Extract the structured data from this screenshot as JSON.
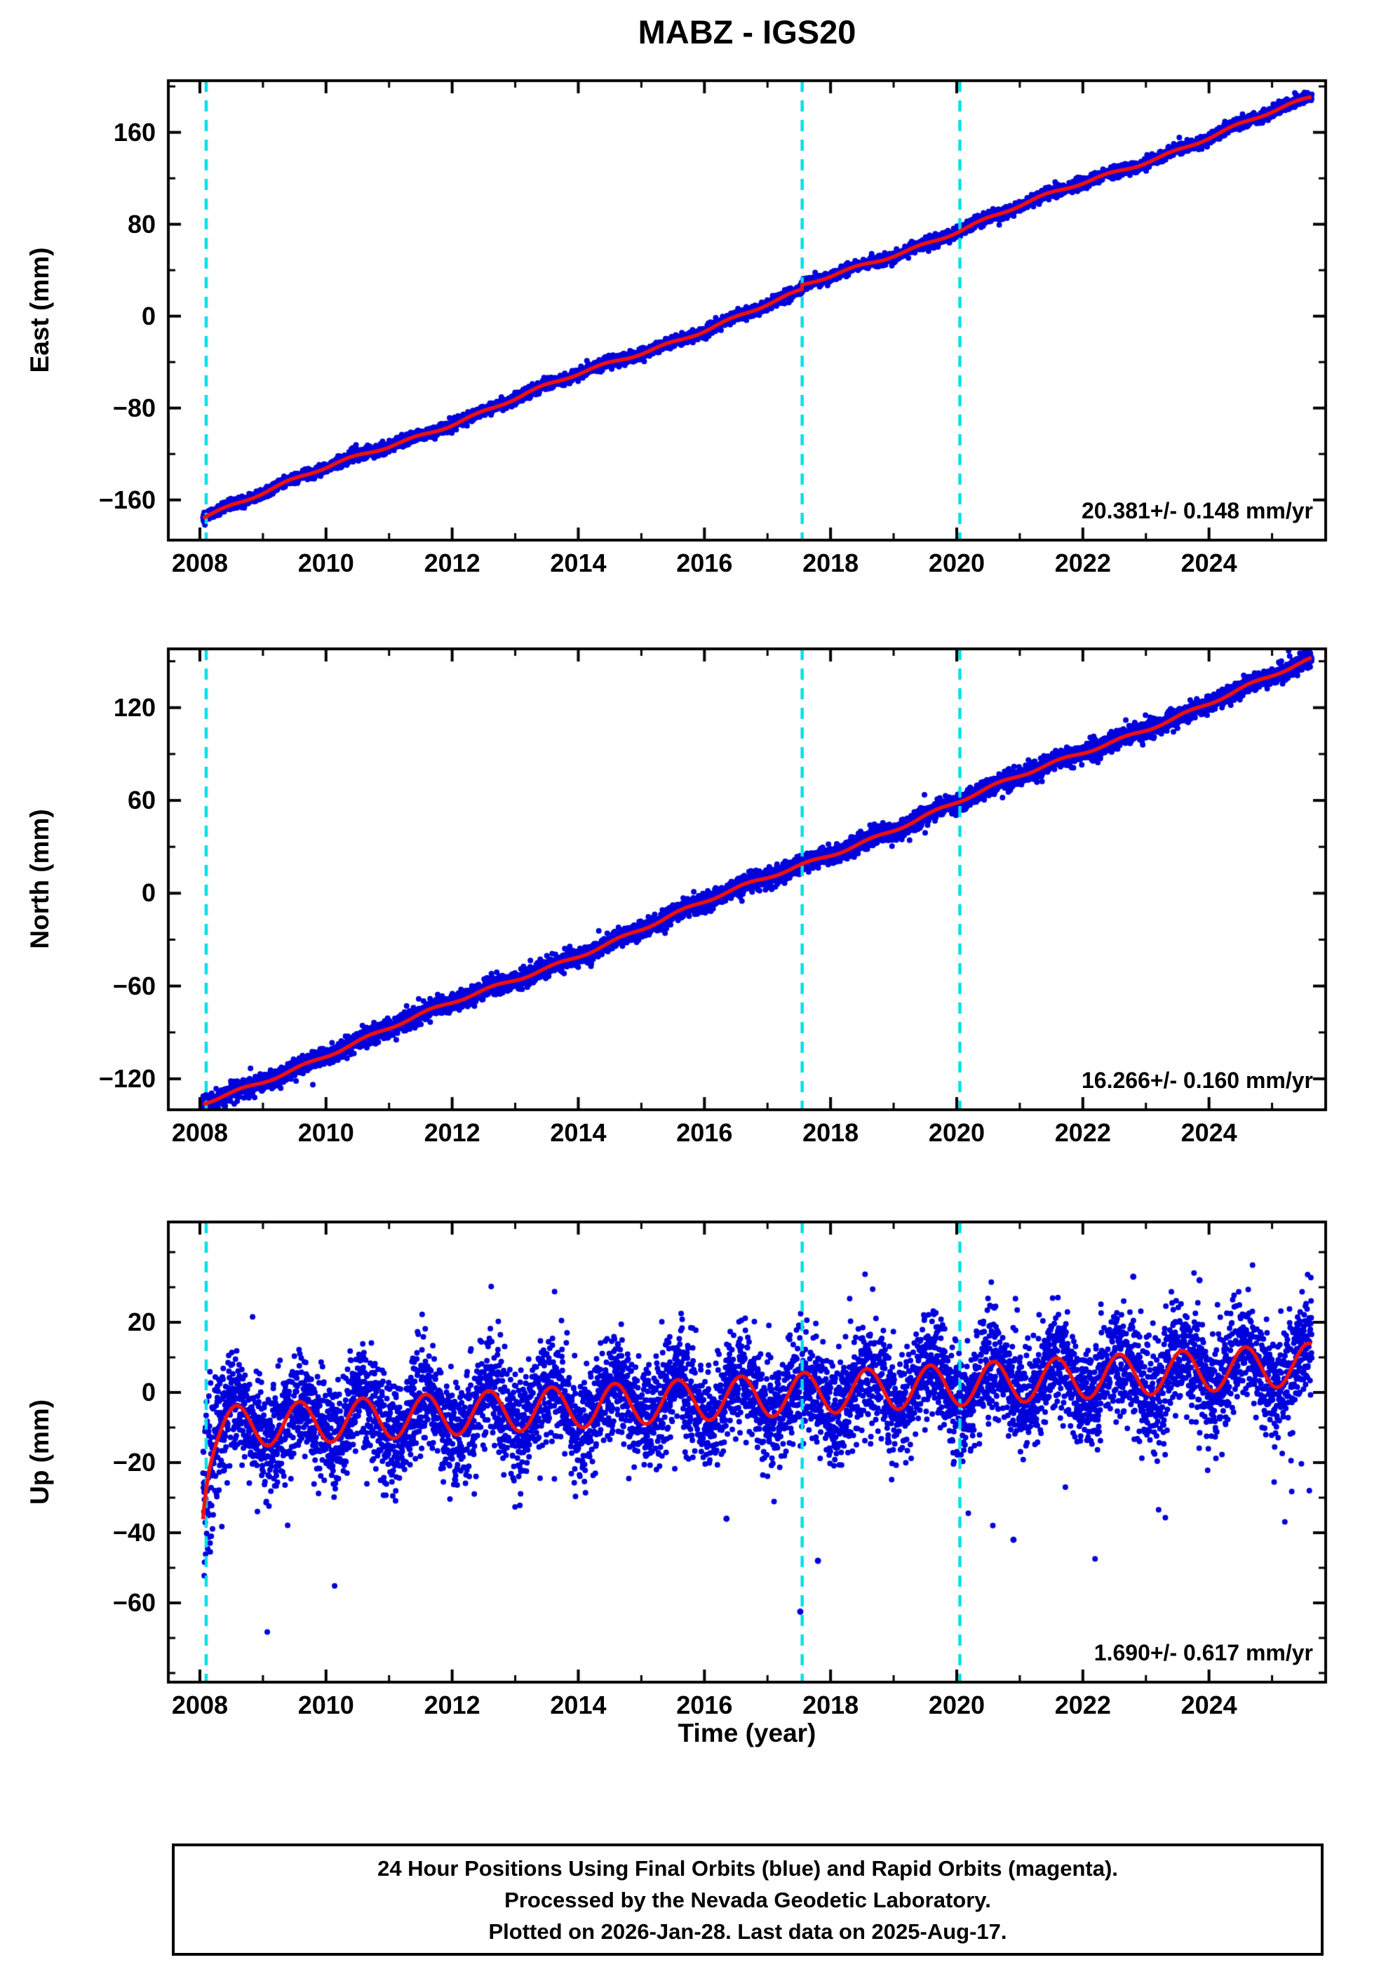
{
  "chart_data": {
    "type": "scatter",
    "title": "MABZ - IGS20",
    "xlabel": "Time (year)",
    "xlim": [
      2007.5,
      2025.85
    ],
    "xticks": [
      2008,
      2010,
      2012,
      2014,
      2016,
      2018,
      2020,
      2022,
      2024
    ],
    "x_minor_tick_step": 1,
    "vlines": [
      2008.1,
      2017.55,
      2020.05
    ],
    "colors": {
      "points": "#0000DC",
      "trend": "#EE1111",
      "event_lines": "#00E0E8",
      "frame": "#000000"
    },
    "legend": {
      "final_orbits_color": "blue",
      "rapid_orbits_color": "magenta"
    },
    "panels": [
      {
        "name": "east",
        "ylabel": "East (mm)",
        "ylim": [
          -195,
          205
        ],
        "yticks": [
          160,
          80,
          0,
          -80,
          -160
        ],
        "rate_label": "20.381+/- 0.148 mm/yr",
        "rate_mm_per_yr": 20.381,
        "rate_sigma_mm_per_yr": 0.148,
        "model": {
          "kind": "linear",
          "t_start": 2008.05,
          "t_end": 2025.63,
          "y_start": -173,
          "rate": 20.381,
          "step_t": 2017.55,
          "step_mm": 4,
          "noise_sd": 2.3,
          "wiggles": [
            {
              "amp": 2.0,
              "period": 3.8,
              "phase": 2009.0
            },
            {
              "amp": 1.2,
              "period": 1.0,
              "phase": 0.15
            }
          ]
        }
      },
      {
        "name": "north",
        "ylabel": "North (mm)",
        "ylim": [
          -140,
          158
        ],
        "yticks": [
          120,
          60,
          0,
          -60,
          -120
        ],
        "rate_label": "16.266+/- 0.160 mm/yr",
        "rate_mm_per_yr": 16.266,
        "rate_sigma_mm_per_yr": 0.16,
        "model": {
          "kind": "linear",
          "t_start": 2008.05,
          "t_end": 2025.63,
          "y_start": -136,
          "rate": 16.266,
          "step_t": 0,
          "step_mm": 0,
          "noise_sd": 2.8,
          "wiggles": [
            {
              "amp": 1.6,
              "period": 4.6,
              "phase": 2010.5
            },
            {
              "amp": 1.0,
              "period": 1.0,
              "phase": 0.4
            }
          ]
        }
      },
      {
        "name": "up",
        "ylabel": "Up (mm)",
        "ylim": [
          -82.6,
          48.6
        ],
        "yticks": [
          20,
          0,
          -20,
          -40,
          -60
        ],
        "rate_label": "1.690+/- 0.617 mm/yr",
        "rate_mm_per_yr": 1.69,
        "rate_sigma_mm_per_yr": 0.617,
        "model": {
          "kind": "seasonal",
          "t_start": 2008.05,
          "t_end": 2025.63,
          "base_y": -10,
          "base_t": 2008.3,
          "slope": 1.04,
          "transient_amp": -20,
          "transient_tau": 0.09,
          "seasonal_amp": 6.0,
          "seasonal_phase": 0.33,
          "noise_sd": 7.5,
          "early_noise_sd": 12,
          "early_t": 2008.3,
          "outlier_down_rate": 0.004,
          "outlier_up_rate": 0.004
        },
        "outliers": [
          [
            2017.52,
            -62.5
          ],
          [
            2017.8,
            -48
          ],
          [
            2020.9,
            -42
          ],
          [
            2016.35,
            -36
          ],
          [
            2022.8,
            33
          ],
          [
            2023.85,
            32
          ]
        ]
      }
    ]
  },
  "caption": {
    "lines": [
      "24 Hour Positions Using Final Orbits (blue) and Rapid Orbits (magenta).",
      "Processed by the Nevada Geodetic Laboratory.",
      "Plotted on 2026-Jan-28. Last data on 2025-Aug-17."
    ]
  }
}
